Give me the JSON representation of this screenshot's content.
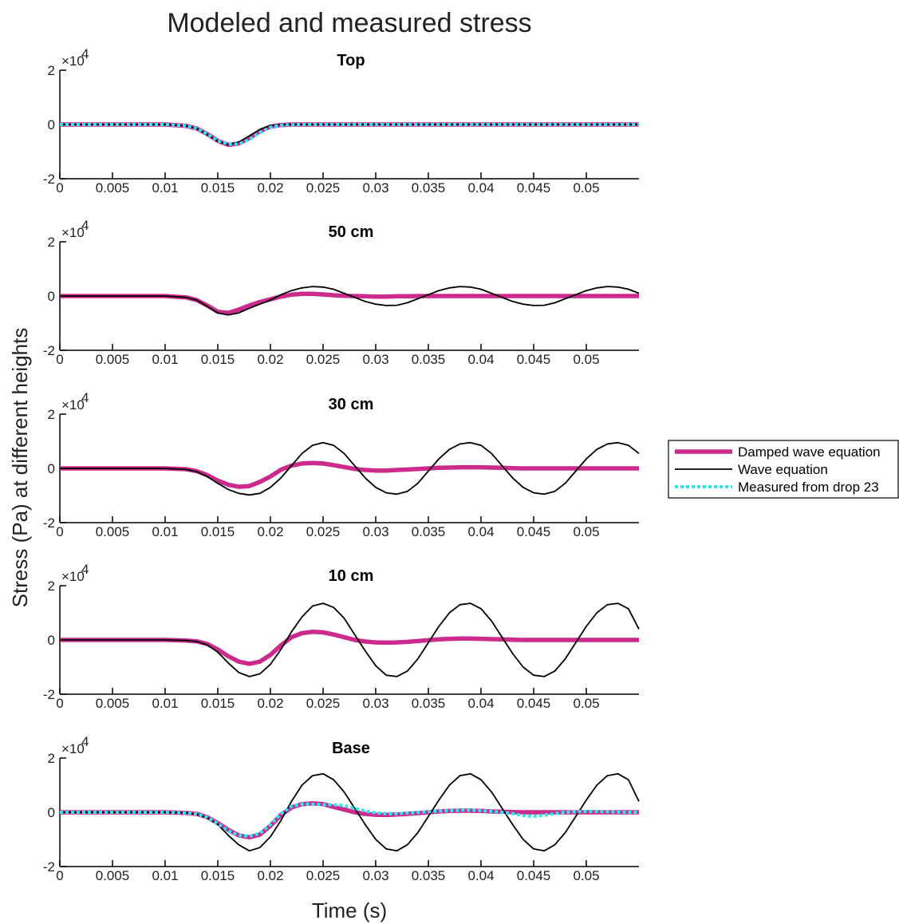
{
  "chart_data": {
    "type": "line",
    "title": "Modeled and measured stress",
    "xlabel": "Time (s)",
    "ylabel": "Stress (Pa) at different heights",
    "xlim": [
      0,
      0.055
    ],
    "ylim": [
      -2,
      2
    ],
    "y_multiplier": "×10",
    "y_exponent": "4",
    "x_ticks": [
      0,
      0.005,
      0.01,
      0.015,
      0.02,
      0.025,
      0.03,
      0.035,
      0.04,
      0.045,
      0.05
    ],
    "x_tick_labels": [
      "0",
      "0.005",
      "0.01",
      "0.015",
      "0.02",
      "0.025",
      "0.03",
      "0.035",
      "0.04",
      "0.045",
      "0.05"
    ],
    "y_ticks": [
      -2,
      0,
      2
    ],
    "y_tick_labels": [
      "-2",
      "0",
      "2"
    ],
    "x": [
      0,
      0.005,
      0.01,
      0.012,
      0.013,
      0.014,
      0.015,
      0.016,
      0.017,
      0.018,
      0.019,
      0.02,
      0.021,
      0.022,
      0.023,
      0.024,
      0.025,
      0.026,
      0.027,
      0.028,
      0.029,
      0.03,
      0.031,
      0.032,
      0.033,
      0.034,
      0.035,
      0.036,
      0.037,
      0.038,
      0.039,
      0.04,
      0.041,
      0.042,
      0.043,
      0.044,
      0.045,
      0.046,
      0.047,
      0.048,
      0.049,
      0.05,
      0.051,
      0.052,
      0.053,
      0.054,
      0.055
    ],
    "legend": {
      "position": "right",
      "entries": [
        "Damped wave equation",
        "Wave equation",
        "Measured from drop 23"
      ]
    },
    "series_styles": [
      {
        "color": "#cc2a8c",
        "width": 5.5,
        "dash": ""
      },
      {
        "color": "#000000",
        "width": 1.8,
        "dash": ""
      },
      {
        "color": "#2ee6f0",
        "width": 4,
        "dash": "4 3"
      }
    ],
    "panels": [
      {
        "title": "Top",
        "series": [
          {
            "legend_index": 0,
            "values": [
              0,
              0,
              0,
              -0.05,
              -0.15,
              -0.35,
              -0.6,
              -0.75,
              -0.7,
              -0.5,
              -0.25,
              -0.08,
              -0.02,
              0,
              0,
              0,
              0,
              0,
              0,
              0,
              0,
              0,
              0,
              0,
              0,
              0,
              0,
              0,
              0,
              0,
              0,
              0,
              0,
              0,
              0,
              0,
              0,
              0,
              0,
              0,
              0,
              0,
              0,
              0,
              0,
              0,
              0
            ]
          },
          {
            "legend_index": 1,
            "values": [
              0,
              0,
              0,
              -0.05,
              -0.15,
              -0.37,
              -0.62,
              -0.75,
              -0.65,
              -0.42,
              -0.18,
              -0.04,
              0,
              0,
              0,
              0,
              0,
              0,
              0,
              0,
              0,
              0,
              0,
              0,
              0,
              0,
              0,
              0,
              0,
              0,
              0,
              0,
              0,
              0,
              0,
              0,
              0,
              0,
              0,
              0,
              0,
              0,
              0,
              0,
              0,
              0,
              0
            ]
          },
          {
            "legend_index": 2,
            "values": [
              0,
              0,
              0,
              -0.05,
              -0.15,
              -0.35,
              -0.6,
              -0.72,
              -0.72,
              -0.55,
              -0.3,
              -0.1,
              -0.03,
              -0.01,
              0,
              0,
              0,
              0,
              0,
              0,
              0,
              0,
              0,
              0,
              0,
              0,
              0,
              0,
              0,
              0,
              0,
              0,
              0,
              0,
              0,
              0,
              0,
              0,
              0,
              0,
              0,
              0,
              0,
              0,
              0,
              0,
              0
            ]
          }
        ]
      },
      {
        "title": "50 cm",
        "series": [
          {
            "legend_index": 0,
            "values": [
              0,
              0,
              0,
              -0.05,
              -0.15,
              -0.35,
              -0.58,
              -0.62,
              -0.5,
              -0.35,
              -0.22,
              -0.12,
              -0.02,
              0.05,
              0.08,
              0.08,
              0.06,
              0.03,
              0.01,
              0,
              -0.01,
              -0.02,
              -0.02,
              -0.01,
              -0.01,
              0,
              0,
              0,
              0,
              0,
              0,
              0,
              0,
              0,
              0,
              0,
              0,
              0,
              0,
              0,
              0,
              0,
              0,
              0,
              0,
              0,
              0
            ]
          },
          {
            "legend_index": 1,
            "values": [
              0,
              0,
              0,
              -0.05,
              -0.15,
              -0.38,
              -0.62,
              -0.7,
              -0.62,
              -0.45,
              -0.3,
              -0.15,
              0.05,
              0.2,
              0.3,
              0.35,
              0.33,
              0.25,
              0.1,
              -0.05,
              -0.2,
              -0.3,
              -0.35,
              -0.34,
              -0.25,
              -0.1,
              0.05,
              0.2,
              0.3,
              0.35,
              0.33,
              0.25,
              0.1,
              -0.05,
              -0.2,
              -0.3,
              -0.35,
              -0.34,
              -0.25,
              -0.1,
              0.05,
              0.2,
              0.3,
              0.35,
              0.33,
              0.25,
              0.1
            ]
          }
        ]
      },
      {
        "title": "30 cm",
        "series": [
          {
            "legend_index": 0,
            "values": [
              0,
              0,
              0,
              -0.03,
              -0.1,
              -0.25,
              -0.45,
              -0.6,
              -0.68,
              -0.65,
              -0.5,
              -0.3,
              -0.05,
              0.1,
              0.18,
              0.2,
              0.18,
              0.12,
              0.05,
              -0.02,
              -0.06,
              -0.08,
              -0.08,
              -0.06,
              -0.04,
              -0.02,
              0,
              0.02,
              0.03,
              0.04,
              0.04,
              0.04,
              0.03,
              0.02,
              0.01,
              0,
              0,
              0,
              0,
              0,
              0,
              0,
              0,
              0,
              0,
              0,
              0
            ]
          },
          {
            "legend_index": 1,
            "values": [
              0,
              0,
              0,
              -0.04,
              -0.12,
              -0.3,
              -0.55,
              -0.78,
              -0.92,
              -0.98,
              -0.92,
              -0.7,
              -0.35,
              0.1,
              0.55,
              0.85,
              0.95,
              0.85,
              0.55,
              0.1,
              -0.35,
              -0.7,
              -0.9,
              -0.95,
              -0.85,
              -0.55,
              -0.1,
              0.35,
              0.7,
              0.9,
              0.95,
              0.85,
              0.55,
              0.1,
              -0.35,
              -0.7,
              -0.9,
              -0.95,
              -0.85,
              -0.55,
              -0.1,
              0.35,
              0.7,
              0.9,
              0.95,
              0.85,
              0.55
            ]
          }
        ]
      },
      {
        "title": "10 cm",
        "series": [
          {
            "legend_index": 0,
            "values": [
              0,
              0,
              0,
              -0.02,
              -0.05,
              -0.15,
              -0.35,
              -0.6,
              -0.8,
              -0.88,
              -0.8,
              -0.55,
              -0.2,
              0.1,
              0.25,
              0.3,
              0.28,
              0.2,
              0.1,
              0,
              -0.06,
              -0.09,
              -0.1,
              -0.09,
              -0.07,
              -0.04,
              -0.01,
              0.02,
              0.04,
              0.05,
              0.05,
              0.04,
              0.03,
              0.02,
              0.01,
              0,
              0,
              0,
              0,
              0,
              0,
              0,
              0,
              0,
              0,
              0,
              0
            ]
          },
          {
            "legend_index": 1,
            "values": [
              0,
              0,
              0,
              -0.02,
              -0.06,
              -0.18,
              -0.45,
              -0.85,
              -1.2,
              -1.35,
              -1.25,
              -0.9,
              -0.35,
              0.3,
              0.85,
              1.25,
              1.35,
              1.2,
              0.8,
              0.2,
              -0.4,
              -0.95,
              -1.3,
              -1.35,
              -1.15,
              -0.7,
              -0.1,
              0.5,
              1.0,
              1.3,
              1.35,
              1.15,
              0.7,
              0.1,
              -0.5,
              -1.0,
              -1.3,
              -1.35,
              -1.15,
              -0.7,
              -0.1,
              0.5,
              1.0,
              1.3,
              1.35,
              1.15,
              0.4
            ]
          }
        ]
      },
      {
        "title": "Base",
        "series": [
          {
            "legend_index": 0,
            "values": [
              0,
              0,
              0,
              -0.02,
              -0.06,
              -0.18,
              -0.4,
              -0.65,
              -0.85,
              -0.92,
              -0.82,
              -0.5,
              -0.1,
              0.18,
              0.3,
              0.33,
              0.3,
              0.2,
              0.1,
              0,
              -0.06,
              -0.09,
              -0.1,
              -0.08,
              -0.06,
              -0.03,
              0,
              0.03,
              0.05,
              0.06,
              0.06,
              0.05,
              0.03,
              0.02,
              0.01,
              0,
              0,
              0,
              0,
              0,
              0,
              0,
              0,
              0,
              0,
              0,
              0
            ]
          },
          {
            "legend_index": 1,
            "values": [
              0,
              0,
              0,
              -0.02,
              -0.07,
              -0.2,
              -0.45,
              -0.85,
              -1.2,
              -1.42,
              -1.3,
              -0.9,
              -0.3,
              0.4,
              1.0,
              1.35,
              1.42,
              1.2,
              0.75,
              0.15,
              -0.45,
              -1.0,
              -1.35,
              -1.42,
              -1.2,
              -0.75,
              -0.15,
              0.45,
              1.0,
              1.35,
              1.42,
              1.2,
              0.75,
              0.15,
              -0.45,
              -1.0,
              -1.35,
              -1.42,
              -1.2,
              -0.75,
              -0.15,
              0.45,
              1.0,
              1.35,
              1.42,
              1.2,
              0.4
            ]
          },
          {
            "legend_index": 2,
            "values": [
              0,
              0,
              0,
              -0.02,
              -0.06,
              -0.18,
              -0.42,
              -0.68,
              -0.85,
              -0.88,
              -0.78,
              -0.45,
              -0.05,
              0.22,
              0.3,
              0.3,
              0.28,
              0.28,
              0.25,
              0.15,
              0.05,
              -0.02,
              -0.05,
              -0.05,
              -0.03,
              0,
              0.02,
              0.04,
              0.06,
              0.08,
              0.08,
              0.06,
              0.03,
              0,
              -0.05,
              -0.12,
              -0.15,
              -0.1,
              -0.05,
              0,
              0.02,
              0.03,
              0.03,
              0.02,
              0.01,
              0,
              0
            ]
          }
        ]
      }
    ]
  }
}
